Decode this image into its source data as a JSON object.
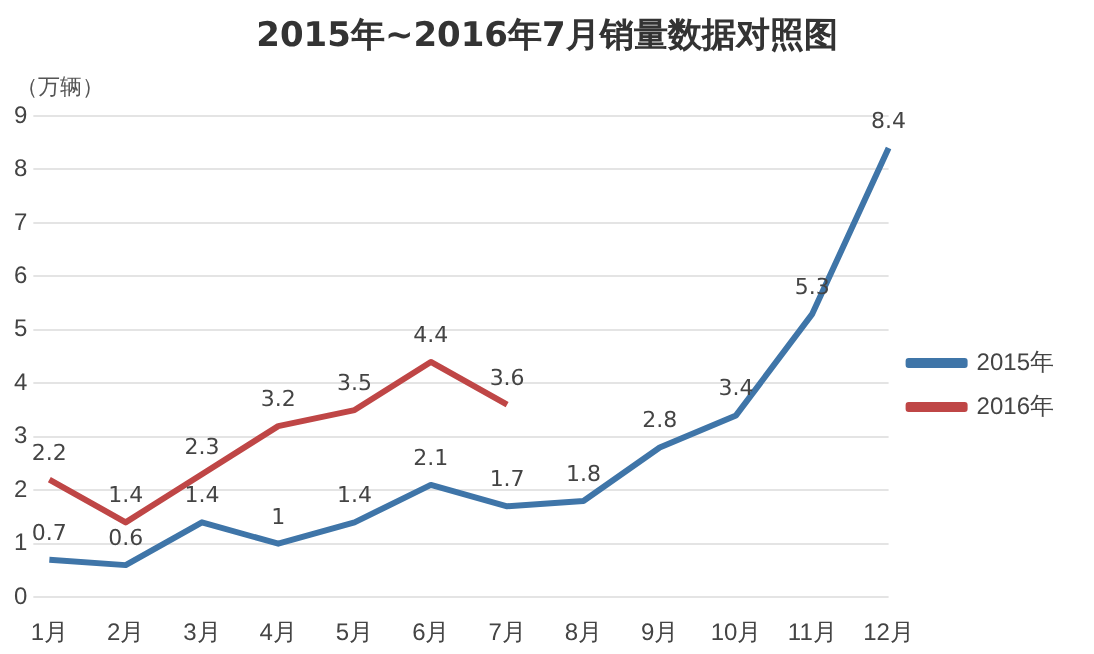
{
  "chart_data": {
    "type": "line",
    "title": "2015年~2016年7月销量数据对照图",
    "ylabel": "（万辆）",
    "categories": [
      "1月",
      "2月",
      "3月",
      "4月",
      "5月",
      "6月",
      "7月",
      "8月",
      "9月",
      "10月",
      "11月",
      "12月"
    ],
    "series": [
      {
        "name": "2015年",
        "color": "#3f75a8",
        "values": [
          0.7,
          0.6,
          1.4,
          1,
          1.4,
          2.1,
          1.7,
          1.8,
          2.8,
          3.4,
          5.3,
          8.4
        ]
      },
      {
        "name": "2016年",
        "color": "#bf4646",
        "values": [
          2.2,
          1.4,
          2.3,
          3.2,
          3.5,
          4.4,
          3.6,
          null,
          null,
          null,
          null,
          null
        ]
      }
    ],
    "ylim": [
      0,
      9
    ],
    "yticks": [
      0,
      1,
      2,
      3,
      4,
      5,
      6,
      7,
      8,
      9
    ],
    "grid": "y",
    "legend": "right",
    "data_labels": true,
    "marker": "none",
    "line_style": "solid"
  }
}
